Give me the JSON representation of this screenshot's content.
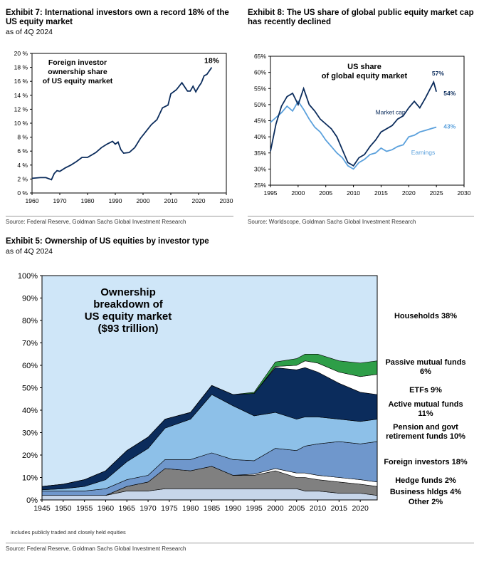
{
  "exhibit7": {
    "title": "Exhibit 7: International investors own a record 18% of the US equity market",
    "subtitle": "as of 4Q 2024",
    "source": "Source: Federal Reserve, Goldman Sachs Global Investment Research"
  },
  "exhibit8": {
    "title": "Exhibit 8: The US share of global public equity market cap has recently declined",
    "subtitle": "",
    "source": "Source: Worldscope, Goldman Sachs Global Investment Research"
  },
  "exhibit5": {
    "title": "Exhibit 5: Ownership of US equities by investor type",
    "subtitle": "as of 4Q 2024",
    "footnote": "includes publicly traded and closely held equities",
    "source": "Source: Federal Reserve, Goldman Sachs Global Investment Research"
  },
  "colors": {
    "navy": "#0b2c5c",
    "lightblue": "#5aa0dc",
    "ex5_bg": "#cfe6f8",
    "households": "#cfe6f8",
    "passive": "#2e9e48",
    "etfs": "#ffffff",
    "active": "#0b2c5c",
    "pension": "#8dc0e8",
    "foreign": "#6f97cc",
    "hedge": "#ffffff",
    "business": "#808080",
    "other": "#c7d6ea"
  },
  "chart_data": [
    {
      "id": "foreign_share",
      "type": "line",
      "title": "",
      "annotation": "Foreign investor ownership share of US equity market",
      "end_label": "18%",
      "xlim": [
        1960,
        2030
      ],
      "x_ticks": [
        "1960",
        "1970",
        "1980",
        "1990",
        "2000",
        "2010",
        "2020",
        "2030"
      ],
      "ylim": [
        0,
        20
      ],
      "y_ticks": [
        "0 %",
        "2 %",
        "4 %",
        "6 %",
        "8 %",
        "10 %",
        "12 %",
        "14 %",
        "16 %",
        "18 %",
        "20 %"
      ],
      "series": [
        {
          "name": "Foreign investor ownership share",
          "x": [
            1960,
            1963,
            1965,
            1967,
            1968,
            1969,
            1970,
            1972,
            1974,
            1976,
            1978,
            1980,
            1983,
            1985,
            1987,
            1989,
            1990,
            1991,
            1992,
            1993,
            1995,
            1997,
            1999,
            2001,
            2003,
            2005,
            2007,
            2009,
            2010,
            2012,
            2014,
            2016,
            2017,
            2018,
            2019,
            2020,
            2021,
            2022,
            2023,
            2024.75
          ],
          "values": [
            2.1,
            2.2,
            2.2,
            1.9,
            2.8,
            3.2,
            3.1,
            3.6,
            4.0,
            4.5,
            5.1,
            5.1,
            5.8,
            6.5,
            7.0,
            7.4,
            7.0,
            7.3,
            6.2,
            5.7,
            5.8,
            6.5,
            7.8,
            8.8,
            9.8,
            10.5,
            12.2,
            12.6,
            14.2,
            14.8,
            15.8,
            14.6,
            14.6,
            15.3,
            14.5,
            15.2,
            15.8,
            16.8,
            17.0,
            18.0
          ]
        }
      ]
    },
    {
      "id": "us_share_global",
      "type": "line",
      "title": "US share of global equity market",
      "xlim": [
        1995,
        2030
      ],
      "x_ticks": [
        "1995",
        "2000",
        "2005",
        "2010",
        "2015",
        "2020",
        "2025",
        "2030"
      ],
      "ylim": [
        25,
        65
      ],
      "y_ticks": [
        "25%",
        "30%",
        "35%",
        "40%",
        "45%",
        "50%",
        "55%",
        "60%",
        "65%"
      ],
      "series": [
        {
          "name": "Market cap",
          "end_label": "54%",
          "peak_label": "57%",
          "x": [
            1995,
            1996,
            1997,
            1998,
            1999,
            2000,
            2001,
            2002,
            2003,
            2004,
            2005,
            2006,
            2007,
            2008,
            2009,
            2010,
            2011,
            2012,
            2013,
            2014,
            2015,
            2016,
            2017,
            2018,
            2019,
            2020,
            2021,
            2022,
            2023,
            2024.5,
            2025
          ],
          "values": [
            35.5,
            44.0,
            49.5,
            52.5,
            53.5,
            50.0,
            55.0,
            50.0,
            48.0,
            45.5,
            44.0,
            42.5,
            40.0,
            36.0,
            32.0,
            31.0,
            33.5,
            34.5,
            37.0,
            39.0,
            41.5,
            42.5,
            43.5,
            45.5,
            46.5,
            49.0,
            51.0,
            49.0,
            52.0,
            57.0,
            54.0
          ]
        },
        {
          "name": "Earnings",
          "end_label": "43%",
          "x": [
            1995,
            1996,
            1997,
            1998,
            1999,
            2000,
            2001,
            2002,
            2003,
            2004,
            2005,
            2006,
            2007,
            2008,
            2009,
            2010,
            2011,
            2012,
            2013,
            2014,
            2015,
            2016,
            2017,
            2018,
            2019,
            2020,
            2021,
            2022,
            2023,
            2024,
            2025
          ],
          "values": [
            44.5,
            46.0,
            47.5,
            49.5,
            48.0,
            51.0,
            48.5,
            45.5,
            43.0,
            41.5,
            39.0,
            37.0,
            35.0,
            33.5,
            31.0,
            30.0,
            32.0,
            33.0,
            34.5,
            35.0,
            36.5,
            35.5,
            36.0,
            37.0,
            37.5,
            40.0,
            40.5,
            41.5,
            42.0,
            42.5,
            43.0
          ]
        }
      ]
    },
    {
      "id": "ownership_by_type",
      "type": "area",
      "title": "Ownership breakdown of US equity market ($93 trillion)",
      "title_lines": [
        "Ownership",
        "breakdown  of",
        "US equity market",
        "($93 trillion)"
      ],
      "stacked": true,
      "xlim": [
        1945,
        2024
      ],
      "x_ticks": [
        "1945",
        "1950",
        "1955",
        "1960",
        "1965",
        "1970",
        "1975",
        "1980",
        "1985",
        "1990",
        "1995",
        "2000",
        "2005",
        "2010",
        "2015",
        "2020"
      ],
      "ylim": [
        0,
        100
      ],
      "y_ticks": [
        "0%",
        "10%",
        "20%",
        "30%",
        "40%",
        "50%",
        "60%",
        "70%",
        "80%",
        "90%",
        "100%"
      ],
      "x": [
        1945,
        1950,
        1955,
        1960,
        1965,
        1970,
        1974,
        1980,
        1985,
        1990,
        1995,
        2000,
        2005,
        2007,
        2010,
        2015,
        2020,
        2024
      ],
      "series": [
        {
          "name": "Other",
          "label": "Other 2%",
          "values": [
            2,
            2,
            2,
            2,
            4,
            4,
            5,
            5,
            5,
            5,
            5,
            5,
            5,
            4,
            4,
            3,
            3,
            2
          ]
        },
        {
          "name": "Business hldgs",
          "label": "Business hldgs 4%",
          "values": [
            0,
            0,
            0,
            0,
            2,
            4,
            9,
            8,
            10,
            6,
            6,
            8,
            5,
            6,
            5,
            5,
            4,
            4
          ]
        },
        {
          "name": "Hedge funds",
          "label": "Hedge funds 2%",
          "values": [
            0,
            0,
            0,
            0,
            0,
            0,
            0,
            0,
            0,
            0,
            0.5,
            1,
            2,
            2,
            2,
            2,
            2,
            2
          ]
        },
        {
          "name": "Foreign investors",
          "label": "Foreign investors 18%",
          "values": [
            2,
            2,
            2,
            3,
            3,
            3,
            4,
            5,
            6,
            7,
            6,
            9,
            10,
            12,
            14,
            16,
            16,
            18
          ]
        },
        {
          "name": "Pension and govt retirement funds",
          "label": "Pension and govt retirement funds 10%",
          "values": [
            0.5,
            1,
            2,
            4,
            8,
            12,
            14,
            18,
            26,
            24,
            20,
            16,
            14,
            13,
            12,
            10,
            10,
            10
          ]
        },
        {
          "name": "Active mutual funds",
          "label": "Active mutual funds 11%",
          "values": [
            1.5,
            2,
            3,
            4,
            5,
            5,
            4,
            3,
            4,
            5,
            10,
            20,
            22,
            22,
            20,
            16,
            13,
            11
          ]
        },
        {
          "name": "ETFs",
          "label": "ETFs 9%",
          "values": [
            0,
            0,
            0,
            0,
            0,
            0,
            0,
            0,
            0,
            0,
            0,
            0.5,
            2,
            3,
            4,
            5,
            7,
            9
          ]
        },
        {
          "name": "Passive mutual funds",
          "label": "Passive mutual funds 6%",
          "values": [
            0,
            0,
            0,
            0,
            0,
            0,
            0,
            0,
            0,
            0,
            0.5,
            2,
            3,
            3,
            4,
            5,
            6,
            6
          ]
        },
        {
          "name": "Households",
          "label": "Households 38%",
          "values": [
            94,
            93,
            91,
            87,
            78,
            72,
            64,
            61,
            49,
            53,
            52,
            38.5,
            37,
            35,
            35,
            38,
            39,
            38
          ]
        }
      ]
    }
  ]
}
